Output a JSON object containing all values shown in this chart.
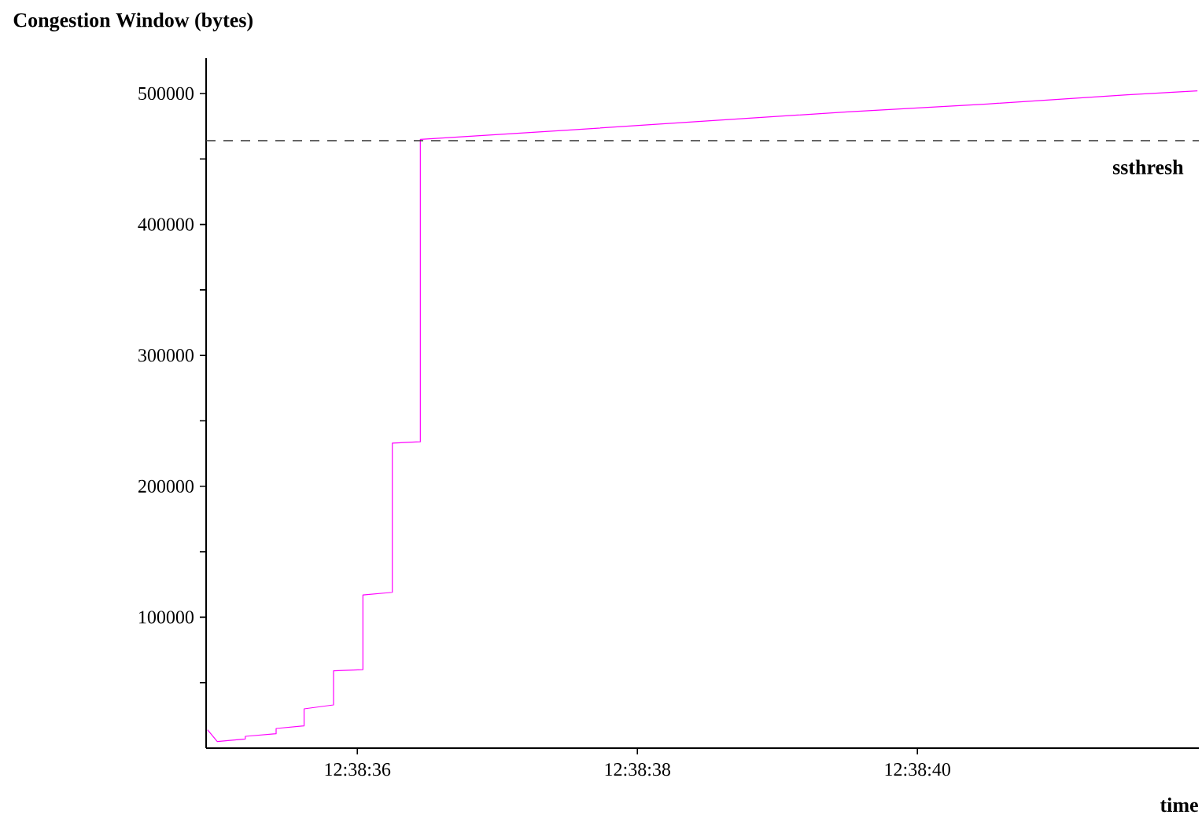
{
  "chart_data": {
    "type": "line",
    "ylabel": "Congestion Window (bytes)",
    "xlabel": "time",
    "x": [
      12.6430361,
      12.6430555,
      12.6431111,
      12.6431111,
      12.6431722,
      12.6431722,
      12.6432277,
      12.6432277,
      12.6432861,
      12.6432861,
      12.6433444,
      12.6433444,
      12.6434027,
      12.6434027,
      12.6434583,
      12.6434583,
      12.64375,
      12.6440277,
      12.6443055,
      12.6445833,
      12.6448611,
      12.645
    ],
    "series": [
      {
        "color": "#ff00ff",
        "values": [
          14000,
          5000,
          7000,
          9000,
          11000,
          15000,
          17000,
          30000,
          33000,
          59000,
          60000,
          117000,
          119000,
          233000,
          234000,
          465000,
          472000,
          479000,
          486000,
          492000,
          499000,
          502000
        ]
      }
    ],
    "xlim": [
      12.6430333,
      12.6450028
    ],
    "xticks": [
      {
        "value": 12.6433333,
        "label": "12:38:36"
      },
      {
        "value": 12.6438889,
        "label": "12:38:38"
      },
      {
        "value": 12.6444444,
        "label": "12:38:40"
      }
    ],
    "ylim": [
      0,
      527000
    ],
    "yticks": [
      {
        "value": 50000,
        "label": null
      },
      100000,
      {
        "value": 150000,
        "label": null
      },
      200000,
      {
        "value": 250000,
        "label": null
      },
      300000,
      {
        "value": 350000,
        "label": null
      },
      400000,
      {
        "value": 450000,
        "label": null
      },
      500000
    ],
    "ref_lines": [
      {
        "axis": "y",
        "value": 464000,
        "label": "ssthresh",
        "color": "#333333",
        "line_style": "dashed"
      }
    ],
    "marker": "none",
    "line_style": "solid",
    "grid": false
  }
}
